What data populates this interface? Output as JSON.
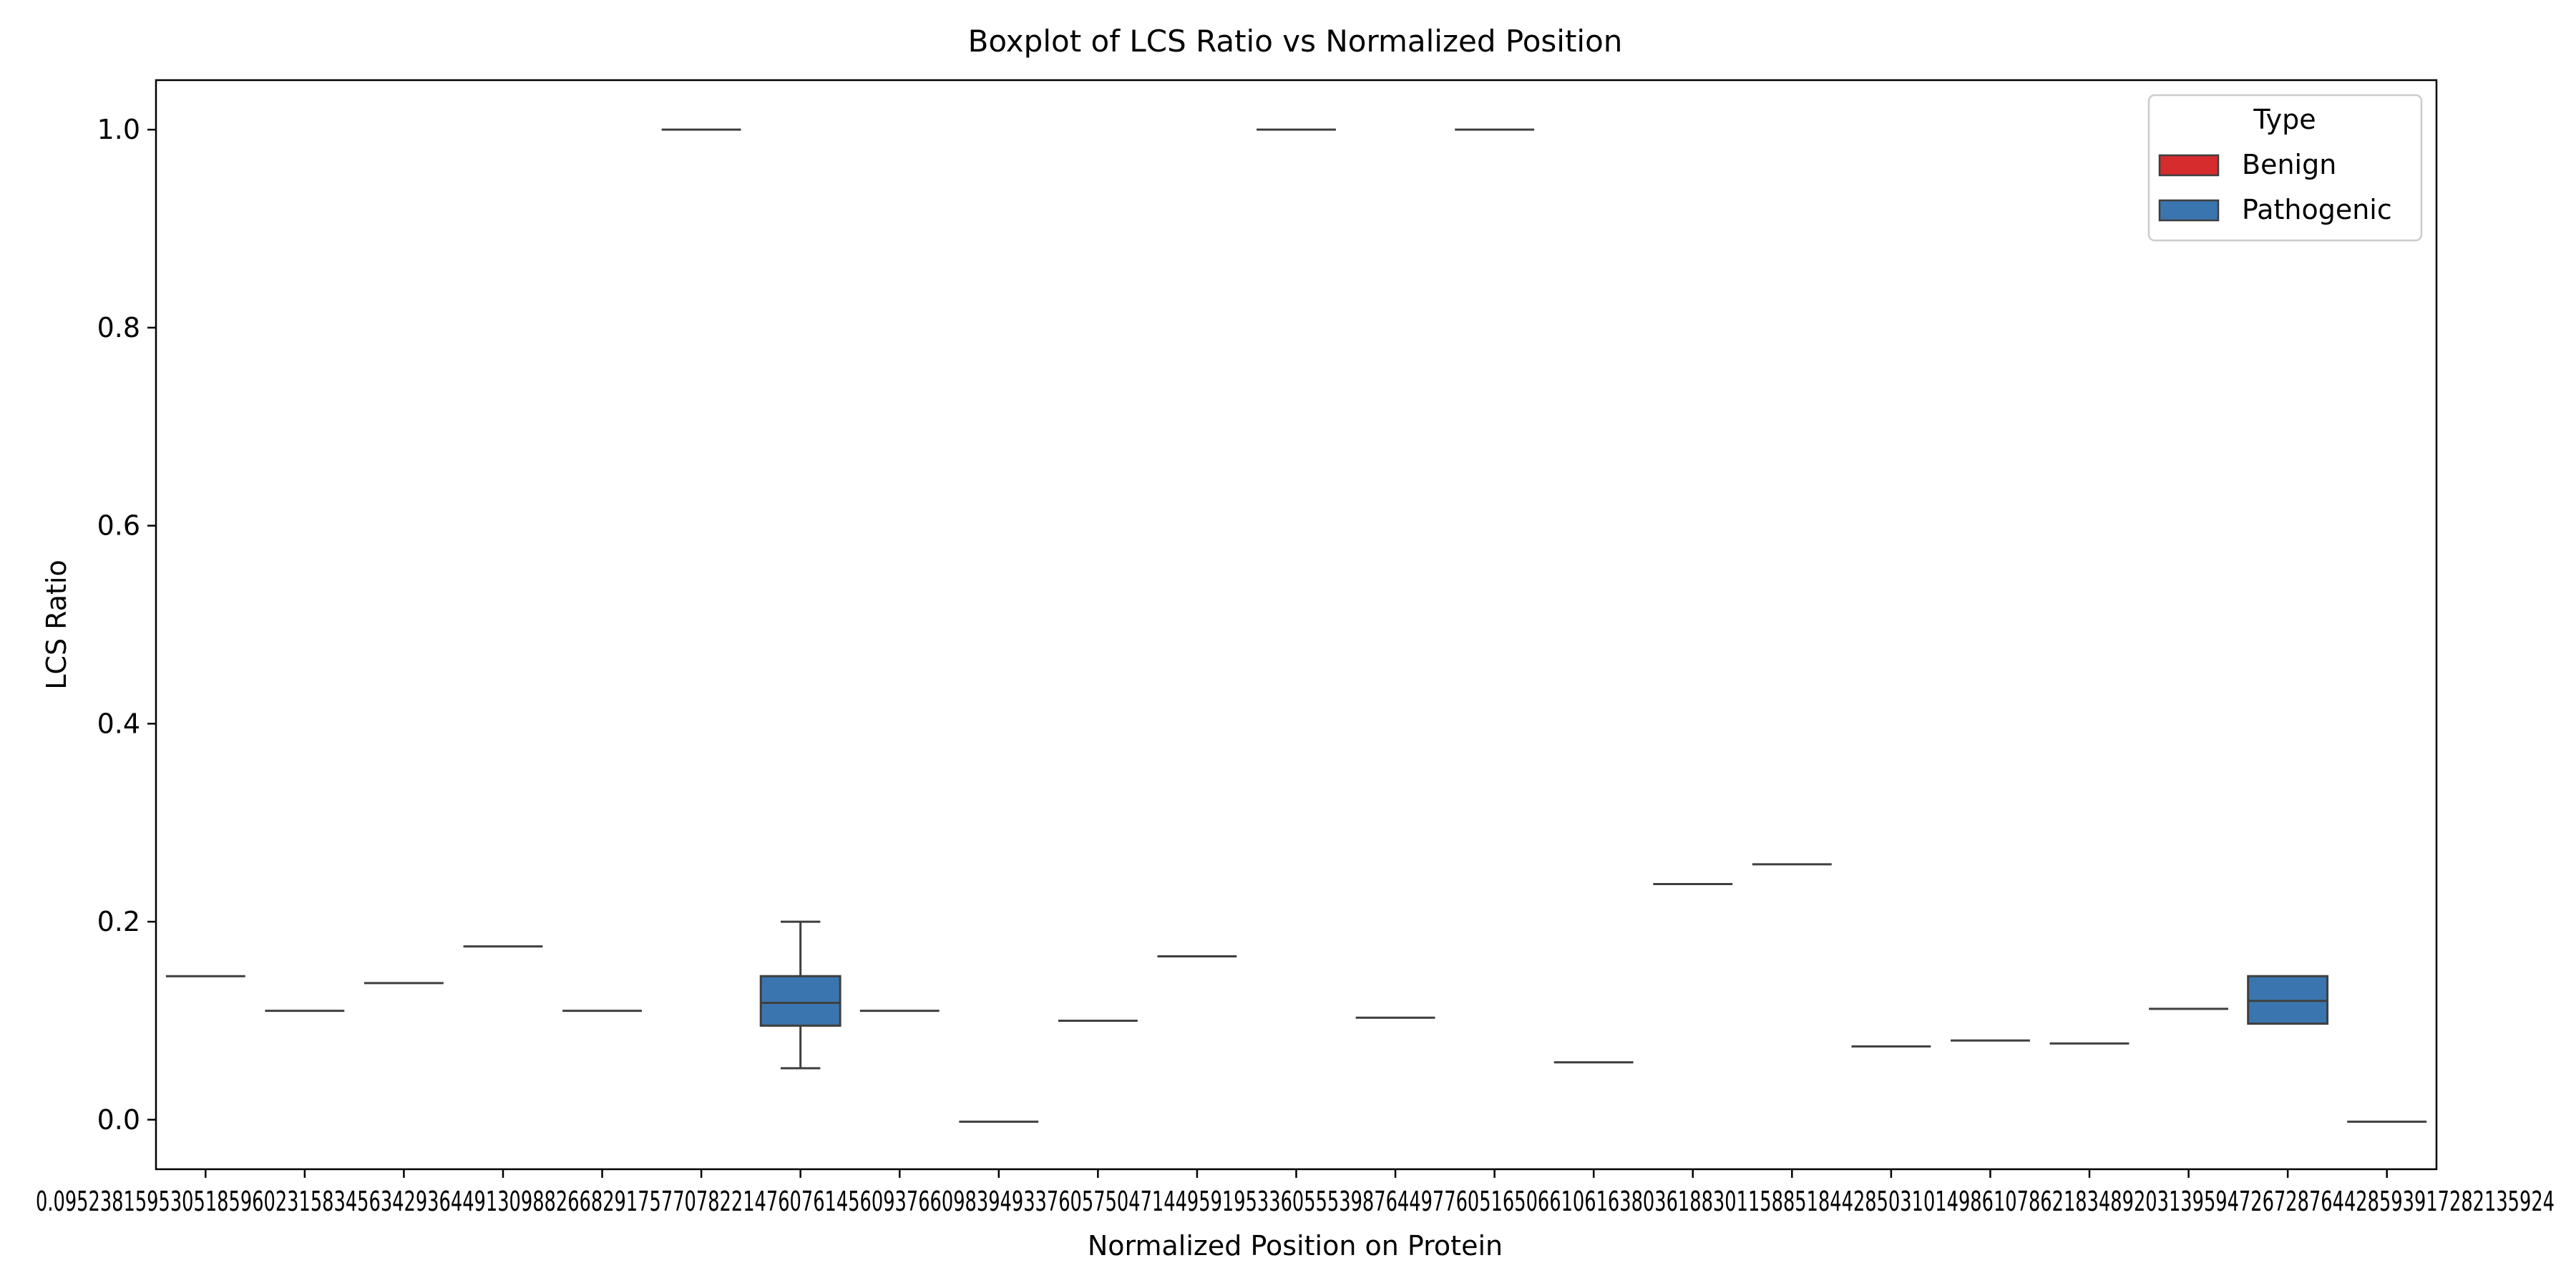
{
  "chart_data": {
    "type": "boxplot",
    "title": "Boxplot of LCS Ratio vs Normalized Position",
    "xlabel": "Normalized Position on Protein",
    "ylabel": "LCS Ratio",
    "ylim": [
      -0.05,
      1.05
    ],
    "yticks": [
      0.0,
      0.2,
      0.4,
      0.6,
      0.8,
      1.0
    ],
    "ytick_labels": [
      "0.0",
      "0.2",
      "0.4",
      "0.6",
      "0.8",
      "1.0"
    ],
    "x_tick_labels_text": "0.0952381595305185960231583456342936449130988266829175770782214760761456093766098394933760575047144959195336055539876449776051650661061638036188301158851844285031014986107862183489203139594726728764428593917282135924",
    "grid": false,
    "legend": {
      "title": "Type",
      "placement": "top-right",
      "entries": [
        {
          "label": "Benign",
          "color": "#d62c2e"
        },
        {
          "label": "Pathogenic",
          "color": "#3b75af"
        }
      ]
    },
    "boxes": [
      {
        "index": 0,
        "type": "Pathogenic",
        "min": 0.145,
        "q1": 0.145,
        "median": 0.145,
        "q3": 0.145,
        "max": 0.145
      },
      {
        "index": 1,
        "type": "Pathogenic",
        "min": 0.11,
        "q1": 0.11,
        "median": 0.11,
        "q3": 0.11,
        "max": 0.11
      },
      {
        "index": 2,
        "type": "Pathogenic",
        "min": 0.138,
        "q1": 0.138,
        "median": 0.138,
        "q3": 0.138,
        "max": 0.138
      },
      {
        "index": 3,
        "type": "Pathogenic",
        "min": 0.175,
        "q1": 0.175,
        "median": 0.175,
        "q3": 0.175,
        "max": 0.175
      },
      {
        "index": 4,
        "type": "Pathogenic",
        "min": 0.11,
        "q1": 0.11,
        "median": 0.11,
        "q3": 0.11,
        "max": 0.11
      },
      {
        "index": 5,
        "type": "Pathogenic",
        "min": 1.0,
        "q1": 1.0,
        "median": 1.0,
        "q3": 1.0,
        "max": 1.0
      },
      {
        "index": 6,
        "type": "Pathogenic",
        "min": 0.052,
        "q1": 0.095,
        "median": 0.118,
        "q3": 0.145,
        "max": 0.2
      },
      {
        "index": 7,
        "type": "Pathogenic",
        "min": 0.11,
        "q1": 0.11,
        "median": 0.11,
        "q3": 0.11,
        "max": 0.11
      },
      {
        "index": 8,
        "type": "Pathogenic",
        "min": -0.002,
        "q1": -0.002,
        "median": -0.002,
        "q3": -0.002,
        "max": -0.002
      },
      {
        "index": 9,
        "type": "Pathogenic",
        "min": 0.1,
        "q1": 0.1,
        "median": 0.1,
        "q3": 0.1,
        "max": 0.1
      },
      {
        "index": 10,
        "type": "Pathogenic",
        "min": 0.165,
        "q1": 0.165,
        "median": 0.165,
        "q3": 0.165,
        "max": 0.165
      },
      {
        "index": 11,
        "type": "Pathogenic",
        "min": 1.0,
        "q1": 1.0,
        "median": 1.0,
        "q3": 1.0,
        "max": 1.0
      },
      {
        "index": 12,
        "type": "Pathogenic",
        "min": 0.103,
        "q1": 0.103,
        "median": 0.103,
        "q3": 0.103,
        "max": 0.103
      },
      {
        "index": 13,
        "type": "Pathogenic",
        "min": 1.0,
        "q1": 1.0,
        "median": 1.0,
        "q3": 1.0,
        "max": 1.0
      },
      {
        "index": 14,
        "type": "Pathogenic",
        "min": 0.058,
        "q1": 0.058,
        "median": 0.058,
        "q3": 0.058,
        "max": 0.058
      },
      {
        "index": 15,
        "type": "Pathogenic",
        "min": 0.238,
        "q1": 0.238,
        "median": 0.238,
        "q3": 0.238,
        "max": 0.238
      },
      {
        "index": 16,
        "type": "Pathogenic",
        "min": 0.258,
        "q1": 0.258,
        "median": 0.258,
        "q3": 0.258,
        "max": 0.258
      },
      {
        "index": 17,
        "type": "Pathogenic",
        "min": 0.074,
        "q1": 0.074,
        "median": 0.074,
        "q3": 0.074,
        "max": 0.074
      },
      {
        "index": 18,
        "type": "Pathogenic",
        "min": 0.08,
        "q1": 0.08,
        "median": 0.08,
        "q3": 0.08,
        "max": 0.08
      },
      {
        "index": 19,
        "type": "Pathogenic",
        "min": 0.077,
        "q1": 0.077,
        "median": 0.077,
        "q3": 0.077,
        "max": 0.077
      },
      {
        "index": 20,
        "type": "Pathogenic",
        "min": 0.112,
        "q1": 0.112,
        "median": 0.112,
        "q3": 0.112,
        "max": 0.112
      },
      {
        "index": 21,
        "type": "Pathogenic",
        "min": 0.097,
        "q1": 0.097,
        "median": 0.12,
        "q3": 0.145,
        "max": 0.145
      },
      {
        "index": 22,
        "type": "Pathogenic",
        "min": -0.002,
        "q1": -0.002,
        "median": -0.002,
        "q3": -0.002,
        "max": -0.002
      }
    ]
  }
}
